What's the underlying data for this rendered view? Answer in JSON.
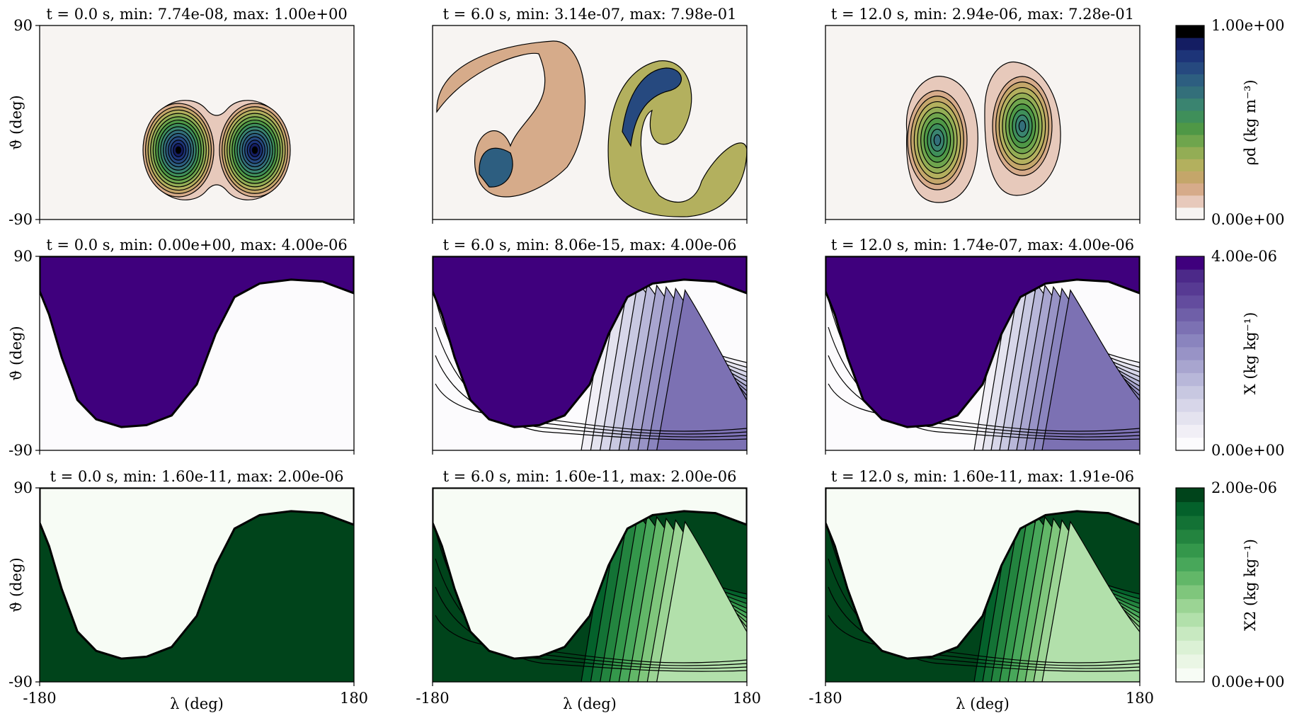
{
  "chart_data": {
    "type": "contour",
    "layout": "3x3 grid of lon-lat contour panels with one colorbar per row",
    "x_axis": {
      "label": "λ (deg)",
      "range": [
        -180,
        180
      ],
      "ticks": [
        "-180",
        "180"
      ]
    },
    "y_axis": {
      "label": "ϑ (deg)",
      "range": [
        -90,
        90
      ],
      "ticks": [
        "90",
        "-90"
      ]
    },
    "rows": [
      {
        "field": "dry air density",
        "colorbar": {
          "label": "ρd (kg m⁻³)",
          "max_label": "1.00e+00",
          "min_label": "0.00e+00",
          "colors": [
            "#f7f4f2",
            "#e7c9bb",
            "#d6ab8a",
            "#c4a66a",
            "#b3b05e",
            "#93ad55",
            "#6fa54d",
            "#4f9846",
            "#3f8f5a",
            "#3a8470",
            "#336f7a",
            "#2d5e80",
            "#26497f",
            "#1d3478",
            "#141d62",
            "#000000"
          ]
        },
        "panels": [
          {
            "title": "t = 0.0 s, min: 7.74e-08, max: 1.00e+00",
            "t": 0.0,
            "min": 7.74e-08,
            "max": 1.0
          },
          {
            "title": "t = 6.0 s, min: 3.14e-07, max: 7.98e-01",
            "t": 6.0,
            "min": 3.14e-07,
            "max": 0.798
          },
          {
            "title": "t = 12.0 s, min: 2.94e-06, max: 7.28e-01",
            "t": 12.0,
            "min": 2.94e-06,
            "max": 0.728
          }
        ]
      },
      {
        "field": "tracer X",
        "colorbar": {
          "label": "X (kg kg⁻¹)",
          "max_label": "4.00e-06",
          "min_label": "0.00e+00",
          "colors": [
            "#fcfbfd",
            "#f1eff6",
            "#e4e3ef",
            "#d7d6e9",
            "#c8c8e1",
            "#b8b7d9",
            "#a8a5cf",
            "#9893c6",
            "#8a84be",
            "#7c71b3",
            "#6f5fa8",
            "#634c9e",
            "#573a93",
            "#4c2989",
            "#3f007d"
          ]
        },
        "panels": [
          {
            "title": "t = 0.0 s, min: 0.00e+00, max: 4.00e-06",
            "t": 0.0,
            "min": 0.0,
            "max": 4e-06
          },
          {
            "title": "t = 6.0 s, min: 8.06e-15, max: 4.00e-06",
            "t": 6.0,
            "min": 8.06e-15,
            "max": 4e-06
          },
          {
            "title": "t = 12.0 s, min: 1.74e-07, max: 4.00e-06",
            "t": 12.0,
            "min": 1.74e-07,
            "max": 4e-06
          }
        ]
      },
      {
        "field": "tracer X2",
        "colorbar": {
          "label": "X2 (kg kg⁻¹)",
          "max_label": "2.00e-06",
          "min_label": "0.00e+00",
          "colors": [
            "#f7fcf5",
            "#eaf6e5",
            "#dbf1d5",
            "#c8e9c1",
            "#b2e0ab",
            "#9bd494",
            "#7fc67c",
            "#62b768",
            "#48a75a",
            "#34974b",
            "#23843f",
            "#137235",
            "#04612b",
            "#00441b"
          ]
        },
        "panels": [
          {
            "title": "t = 0.0 s, min: 1.60e-11, max: 2.00e-06",
            "t": 0.0,
            "min": 1.6e-11,
            "max": 2e-06
          },
          {
            "title": "t = 6.0 s, min: 1.60e-11, max: 2.00e-06",
            "t": 6.0,
            "min": 1.6e-11,
            "max": 2e-06
          },
          {
            "title": "t = 12.0 s, min: 1.60e-11, max: 1.91e-06",
            "t": 12.0,
            "min": 1.6e-11,
            "max": 1.91e-06
          }
        ]
      }
    ]
  }
}
